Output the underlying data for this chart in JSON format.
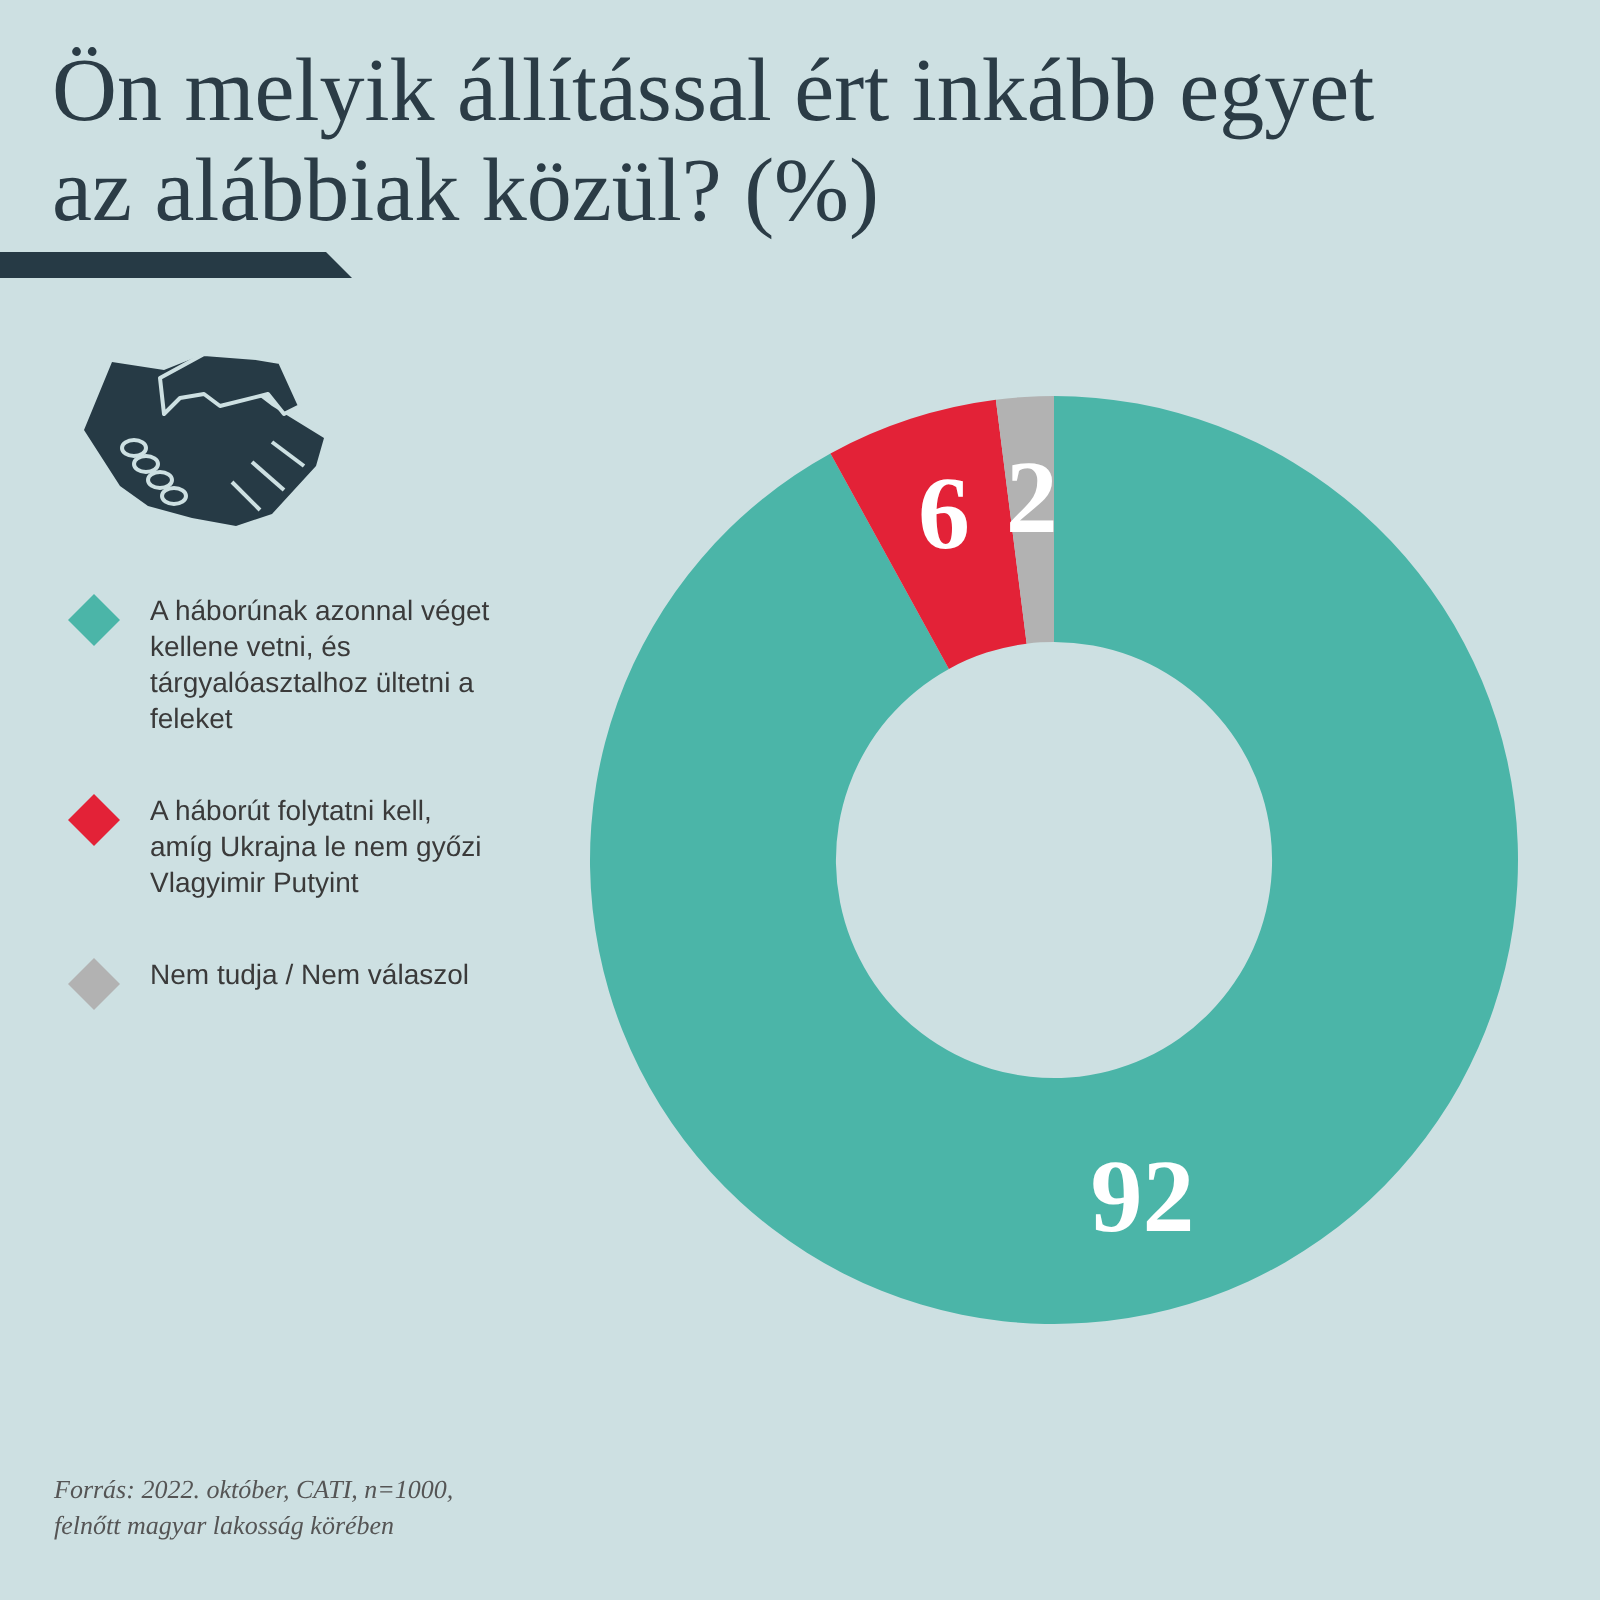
{
  "chart_data": {
    "type": "donut",
    "title": "Ön melyik állítással ért inkább egyet az alábbiak közül? (%)",
    "categories": [
      "A háborúnak azonnal véget kellene vetni, és tárgyalóasztalhoz ültetni a feleket",
      "A háborút folytatni kell, amíg Ukrajna le nem győzi Vlagyimir Putyint",
      "Nem tudja / Nem válaszol"
    ],
    "values": [
      92,
      6,
      2
    ],
    "colors": [
      "#4bb5a8",
      "#e32237",
      "#b2b2b2"
    ],
    "data_labels": true,
    "legend": "left",
    "annotations": [
      "Forrás: 2022. október, CATI, n=1000, felnőtt magyar lakosság körében"
    ]
  }
}
